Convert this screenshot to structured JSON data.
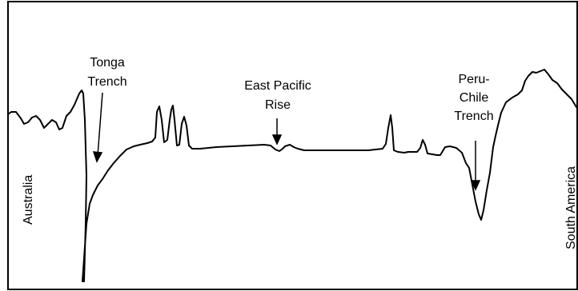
{
  "labels": {
    "tonga_line1": "Tonga",
    "tonga_line2": "Trench",
    "epr_line1": "East Pacific",
    "epr_line2": "Rise",
    "peru_line1": "Peru-",
    "peru_line2": "Chile",
    "peru_line3": "Trench",
    "australia": "Australia",
    "south_america": "South America"
  },
  "colors": {
    "stroke": "#000000",
    "background": "#ffffff"
  }
}
